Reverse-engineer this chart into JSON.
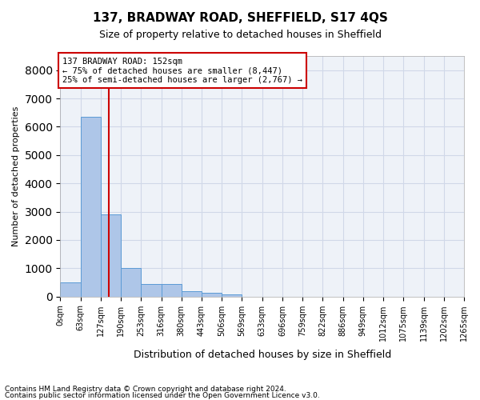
{
  "title": "137, BRADWAY ROAD, SHEFFIELD, S17 4QS",
  "subtitle": "Size of property relative to detached houses in Sheffield",
  "xlabel": "Distribution of detached houses by size in Sheffield",
  "ylabel": "Number of detached properties",
  "bin_labels": [
    "0sqm",
    "63sqm",
    "127sqm",
    "190sqm",
    "253sqm",
    "316sqm",
    "380sqm",
    "443sqm",
    "506sqm",
    "569sqm",
    "633sqm",
    "696sqm",
    "759sqm",
    "822sqm",
    "886sqm",
    "949sqm",
    "1012sqm",
    "1075sqm",
    "1139sqm",
    "1202sqm",
    "1265sqm"
  ],
  "bar_heights": [
    500,
    6350,
    2900,
    1000,
    450,
    450,
    200,
    130,
    80,
    0,
    0,
    0,
    0,
    0,
    0,
    0,
    0,
    0,
    0,
    0
  ],
  "bar_color": "#aec6e8",
  "bar_edge_color": "#5b9bd5",
  "vline_color": "#cc0000",
  "annotation_text": "137 BRADWAY ROAD: 152sqm\n← 75% of detached houses are smaller (8,447)\n25% of semi-detached houses are larger (2,767) →",
  "annotation_box_color": "#cc0000",
  "ylim": [
    0,
    8500
  ],
  "yticks": [
    0,
    1000,
    2000,
    3000,
    4000,
    5000,
    6000,
    7000,
    8000
  ],
  "grid_color": "#d0d8e8",
  "background_color": "#eef2f8",
  "footer_line1": "Contains HM Land Registry data © Crown copyright and database right 2024.",
  "footer_line2": "Contains public sector information licensed under the Open Government Licence v3.0."
}
